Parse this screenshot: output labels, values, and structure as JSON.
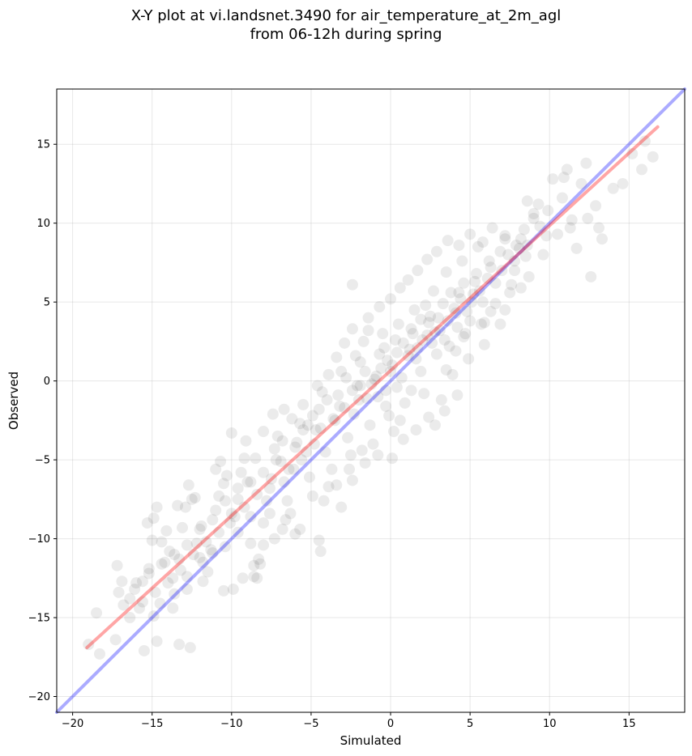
{
  "chart_data": {
    "type": "scatter",
    "title": "X-Y plot at vi.landsnet.3490 for air_temperature_at_2m_agl",
    "subtitle": "from 06-12h during spring",
    "xlabel": "Simulated",
    "ylabel": "Observed",
    "xlim": [
      -21,
      18.5
    ],
    "ylim": [
      -21,
      18.5
    ],
    "xticks": [
      -20,
      -15,
      -10,
      -5,
      0,
      5,
      10,
      15
    ],
    "yticks": [
      -20,
      -15,
      -10,
      -5,
      0,
      5,
      10,
      15
    ],
    "xtick_labels": [
      "−20",
      "−15",
      "−10",
      "−5",
      "0",
      "5",
      "10",
      "15"
    ],
    "ytick_labels": [
      "−20",
      "−15",
      "−10",
      "−5",
      "0",
      "5",
      "10",
      "15"
    ],
    "grid": true,
    "marker_color": "#000000",
    "marker_alpha": 0.08,
    "lines": [
      {
        "role": "one-to-one reference",
        "color": "#0000ff",
        "alpha": 0.33,
        "x": [
          -21,
          18.5
        ],
        "y": [
          -21,
          18.5
        ]
      },
      {
        "role": "linear fit",
        "color": "#ff0000",
        "alpha": 0.35,
        "x": [
          -19.1,
          16.8
        ],
        "y": [
          -16.9,
          16.1
        ]
      }
    ],
    "points": [
      [
        -18.3,
        -17.3
      ],
      [
        -19.0,
        -16.7
      ],
      [
        -18.5,
        -14.7
      ],
      [
        -17.3,
        -16.4
      ],
      [
        -17.1,
        -13.4
      ],
      [
        -16.9,
        -12.7
      ],
      [
        -17.2,
        -11.7
      ],
      [
        -16.4,
        -13.8
      ],
      [
        -16.1,
        -13.2
      ],
      [
        -15.8,
        -14.4
      ],
      [
        -15.6,
        -12.7
      ],
      [
        -15.2,
        -11.9
      ],
      [
        -15.3,
        -9.0
      ],
      [
        -14.9,
        -8.7
      ],
      [
        -14.7,
        -8.0
      ],
      [
        -14.4,
        -10.2
      ],
      [
        -14.2,
        -11.5
      ],
      [
        -13.9,
        -10.8
      ],
      [
        -13.7,
        -12.5
      ],
      [
        -13.3,
        -11.3
      ],
      [
        -13.1,
        -9.3
      ],
      [
        -12.9,
        -8.0
      ],
      [
        -12.7,
        -6.6
      ],
      [
        -12.5,
        -7.5
      ],
      [
        -12.2,
        -10.3
      ],
      [
        -11.9,
        -9.2
      ],
      [
        -11.8,
        -11.5
      ],
      [
        -11.5,
        -12.1
      ],
      [
        -11.3,
        -10.7
      ],
      [
        -11.0,
        -8.2
      ],
      [
        -10.8,
        -7.3
      ],
      [
        -10.5,
        -6.5
      ],
      [
        -10.3,
        -6.0
      ],
      [
        -10.1,
        -9.0
      ],
      [
        -9.8,
        -8.6
      ],
      [
        -9.6,
        -7.5
      ],
      [
        -9.4,
        -5.8
      ],
      [
        -9.2,
        -4.9
      ],
      [
        -9.0,
        -6.4
      ],
      [
        -8.8,
        -10.3
      ],
      [
        -8.6,
        -11.7
      ],
      [
        -8.4,
        -12.5
      ],
      [
        -8.2,
        -11.6
      ],
      [
        -8.0,
        -9.0
      ],
      [
        -7.8,
        -7.6
      ],
      [
        -7.5,
        -6.2
      ],
      [
        -7.3,
        -4.3
      ],
      [
        -7.1,
        -3.5
      ],
      [
        -6.9,
        -5.1
      ],
      [
        -6.7,
        -6.4
      ],
      [
        -6.5,
        -7.6
      ],
      [
        -6.3,
        -8.4
      ],
      [
        -6.1,
        -5.6
      ],
      [
        -5.9,
        -3.9
      ],
      [
        -5.7,
        -2.7
      ],
      [
        -5.5,
        -1.5
      ],
      [
        -5.3,
        -4.5
      ],
      [
        -5.1,
        -6.1
      ],
      [
        -4.9,
        -7.3
      ],
      [
        -4.7,
        -3.1
      ],
      [
        -4.5,
        -1.8
      ],
      [
        -4.3,
        -0.7
      ],
      [
        -4.1,
        -4.5
      ],
      [
        -3.9,
        -6.7
      ],
      [
        -3.7,
        -5.6
      ],
      [
        -3.5,
        -2.5
      ],
      [
        -3.3,
        -0.9
      ],
      [
        -3.1,
        0.6
      ],
      [
        -2.9,
        -1.7
      ],
      [
        -2.7,
        -3.6
      ],
      [
        -2.5,
        -4.7
      ],
      [
        -2.3,
        -2.1
      ],
      [
        -2.1,
        -0.3
      ],
      [
        -1.9,
        1.2
      ],
      [
        -1.7,
        2.5
      ],
      [
        -1.5,
        -1.1
      ],
      [
        -1.3,
        -2.8
      ],
      [
        -1.1,
        -4.0
      ],
      [
        -0.9,
        0.3
      ],
      [
        -0.7,
        1.7
      ],
      [
        -0.5,
        3.0
      ],
      [
        -0.3,
        -0.6
      ],
      [
        -0.1,
        -2.2
      ],
      [
        0.1,
        1.0
      ],
      [
        0.3,
        2.6
      ],
      [
        0.5,
        3.6
      ],
      [
        0.7,
        0.2
      ],
      [
        0.9,
        -1.4
      ],
      [
        1.1,
        1.6
      ],
      [
        1.3,
        3.3
      ],
      [
        1.5,
        4.5
      ],
      [
        1.7,
        2.1
      ],
      [
        1.9,
        0.6
      ],
      [
        2.1,
        -0.8
      ],
      [
        2.3,
        2.9
      ],
      [
        2.5,
        4.1
      ],
      [
        2.7,
        5.7
      ],
      [
        2.9,
        1.7
      ],
      [
        3.1,
        3.2
      ],
      [
        3.3,
        4.9
      ],
      [
        3.5,
        6.9
      ],
      [
        3.7,
        2.2
      ],
      [
        3.9,
        0.4
      ],
      [
        4.1,
        4.3
      ],
      [
        4.3,
        5.6
      ],
      [
        4.5,
        7.6
      ],
      [
        4.7,
        3.0
      ],
      [
        4.9,
        1.4
      ],
      [
        5.1,
        5.0
      ],
      [
        5.3,
        6.3
      ],
      [
        5.5,
        8.5
      ],
      [
        5.7,
        3.6
      ],
      [
        5.9,
        2.3
      ],
      [
        6.1,
        6.5
      ],
      [
        6.3,
        7.2
      ],
      [
        6.6,
        4.9
      ],
      [
        6.9,
        8.2
      ],
      [
        7.2,
        9.0
      ],
      [
        7.5,
        5.6
      ],
      [
        7.8,
        7.0
      ],
      [
        8.1,
        8.4
      ],
      [
        8.4,
        9.6
      ],
      [
        8.7,
        6.6
      ],
      [
        9.0,
        10.3
      ],
      [
        9.3,
        11.2
      ],
      [
        9.6,
        8.0
      ],
      [
        9.9,
        10.8
      ],
      [
        10.2,
        12.8
      ],
      [
        10.5,
        9.3
      ],
      [
        10.8,
        11.6
      ],
      [
        11.1,
        13.4
      ],
      [
        11.4,
        10.2
      ],
      [
        11.7,
        8.4
      ],
      [
        12.0,
        12.5
      ],
      [
        12.3,
        13.8
      ],
      [
        12.6,
        6.6
      ],
      [
        12.9,
        11.1
      ],
      [
        13.3,
        9.0
      ],
      [
        14.0,
        12.2
      ],
      [
        14.6,
        12.5
      ],
      [
        15.2,
        14.4
      ],
      [
        15.8,
        13.4
      ],
      [
        16.0,
        15.2
      ],
      [
        16.5,
        14.2
      ],
      [
        9.0,
        10.6
      ],
      [
        8.6,
        11.4
      ],
      [
        10.9,
        12.9
      ],
      [
        11.3,
        9.7
      ],
      [
        12.4,
        10.3
      ],
      [
        13.1,
        9.7
      ],
      [
        -2.4,
        6.1
      ],
      [
        -1.4,
        3.2
      ],
      [
        -2.2,
        1.6
      ],
      [
        -1.9,
        -0.3
      ],
      [
        -0.3,
        -1.6
      ],
      [
        0.2,
        -3.2
      ],
      [
        0.6,
        -2.5
      ],
      [
        1.3,
        -0.6
      ],
      [
        2.4,
        -2.3
      ],
      [
        3.2,
        -1.2
      ],
      [
        3.5,
        0.7
      ],
      [
        4.1,
        1.9
      ],
      [
        4.6,
        2.8
      ],
      [
        5.6,
        5.7
      ],
      [
        5.9,
        3.7
      ],
      [
        6.3,
        4.4
      ],
      [
        6.9,
        3.6
      ],
      [
        7.2,
        4.5
      ],
      [
        7.6,
        6.1
      ],
      [
        8.2,
        5.9
      ],
      [
        -4.5,
        -10.1
      ],
      [
        -4.4,
        -10.8
      ],
      [
        -5.7,
        -9.4
      ],
      [
        -6.6,
        -8.8
      ],
      [
        -7.6,
        -8.4
      ],
      [
        -8.8,
        -8.6
      ],
      [
        -9.6,
        -9.6
      ],
      [
        -10.4,
        -10.5
      ],
      [
        -11.2,
        -10.9
      ],
      [
        -12.0,
        -11.2
      ],
      [
        -12.8,
        -12.4
      ],
      [
        -13.6,
        -13.5
      ],
      [
        -14.5,
        -14.1
      ],
      [
        -14.9,
        -14.9
      ],
      [
        -15.5,
        -17.1
      ],
      [
        -14.7,
        -16.5
      ],
      [
        -13.3,
        -16.7
      ],
      [
        -12.6,
        -16.9
      ],
      [
        -13.7,
        -14.4
      ],
      [
        -12.8,
        -13.2
      ],
      [
        -11.8,
        -12.7
      ],
      [
        -10.5,
        -13.3
      ],
      [
        -9.9,
        -13.2
      ],
      [
        -9.3,
        -12.5
      ],
      [
        -8.6,
        -12.4
      ],
      [
        -8.3,
        -11.3
      ],
      [
        -8.0,
        -10.4
      ],
      [
        -7.3,
        -10.0
      ],
      [
        -6.8,
        -9.4
      ],
      [
        -6.0,
        -9.7
      ],
      [
        -15.0,
        -10.1
      ],
      [
        -14.1,
        -9.5
      ],
      [
        -13.4,
        -7.9
      ],
      [
        -12.3,
        -7.4
      ],
      [
        -11.0,
        -5.6
      ],
      [
        -10.7,
        -5.1
      ],
      [
        -10.0,
        -3.3
      ],
      [
        -9.1,
        -3.8
      ],
      [
        -8.5,
        -4.9
      ],
      [
        -8.0,
        -3.2
      ],
      [
        -7.4,
        -2.1
      ],
      [
        -6.7,
        -1.8
      ],
      [
        -6.2,
        -2.4
      ],
      [
        -5.5,
        -3.1
      ],
      [
        -4.9,
        -2.2
      ],
      [
        -4.6,
        -0.3
      ],
      [
        -3.9,
        0.4
      ],
      [
        -3.4,
        1.5
      ],
      [
        -2.9,
        2.4
      ],
      [
        -2.4,
        3.3
      ],
      [
        -1.4,
        4.0
      ],
      [
        -0.7,
        4.7
      ],
      [
        0.0,
        5.2
      ],
      [
        0.6,
        5.9
      ],
      [
        1.1,
        6.4
      ],
      [
        1.7,
        7.0
      ],
      [
        2.3,
        7.7
      ],
      [
        2.9,
        8.2
      ],
      [
        3.6,
        8.9
      ],
      [
        4.3,
        8.6
      ],
      [
        5.0,
        9.3
      ],
      [
        5.8,
        8.8
      ],
      [
        6.4,
        9.7
      ],
      [
        7.2,
        9.2
      ],
      [
        7.9,
        8.6
      ],
      [
        8.5,
        7.9
      ],
      [
        -1.8,
        -4.4
      ],
      [
        -2.6,
        -5.6
      ],
      [
        -3.4,
        -6.6
      ],
      [
        -4.2,
        -7.6
      ],
      [
        -3.1,
        -8.0
      ],
      [
        -2.4,
        -6.3
      ],
      [
        -1.6,
        -5.2
      ],
      [
        -0.8,
        -4.7
      ],
      [
        0.1,
        -4.9
      ],
      [
        0.8,
        -3.7
      ],
      [
        1.6,
        -3.1
      ],
      [
        2.8,
        -2.8
      ],
      [
        3.4,
        -1.9
      ],
      [
        4.2,
        -0.9
      ],
      [
        -1.0,
        0.1
      ],
      [
        -0.6,
        0.8
      ],
      [
        -0.2,
        1.3
      ],
      [
        0.4,
        1.8
      ],
      [
        0.8,
        2.4
      ],
      [
        1.2,
        2.0
      ],
      [
        1.6,
        1.4
      ],
      [
        2.0,
        2.6
      ],
      [
        2.4,
        3.7
      ],
      [
        2.8,
        3.1
      ],
      [
        3.0,
        4.0
      ],
      [
        3.6,
        3.8
      ],
      [
        4.0,
        4.6
      ],
      [
        4.4,
        5.2
      ],
      [
        4.8,
        4.4
      ],
      [
        5.2,
        5.5
      ],
      [
        -0.4,
        2.1
      ],
      [
        0.0,
        0.6
      ],
      [
        0.4,
        -0.4
      ],
      [
        -0.8,
        -1.0
      ],
      [
        -1.2,
        -0.2
      ],
      [
        -1.6,
        0.6
      ],
      [
        -2.0,
        -1.2
      ],
      [
        -2.4,
        -0.6
      ],
      [
        -2.8,
        0.2
      ],
      [
        -3.2,
        -1.6
      ],
      [
        -3.6,
        -2.4
      ],
      [
        -4.0,
        -1.2
      ],
      [
        -4.4,
        -3.0
      ],
      [
        -4.8,
        -4.0
      ],
      [
        -5.2,
        -2.8
      ],
      [
        -5.6,
        -5.0
      ],
      [
        -6.0,
        -4.2
      ],
      [
        -6.4,
        -5.6
      ],
      [
        -6.8,
        -3.8
      ],
      [
        -7.2,
        -5.0
      ],
      [
        -7.6,
        -6.8
      ],
      [
        -8.0,
        -5.8
      ],
      [
        -8.4,
        -7.2
      ],
      [
        -8.8,
        -6.4
      ],
      [
        -9.2,
        -8.0
      ],
      [
        -9.6,
        -6.8
      ],
      [
        -10.0,
        -8.4
      ],
      [
        -10.4,
        -7.6
      ],
      [
        -10.8,
        -9.6
      ],
      [
        -11.2,
        -8.8
      ],
      [
        -11.6,
        -10.2
      ],
      [
        -12.0,
        -9.4
      ],
      [
        -12.4,
        -11.0
      ],
      [
        -12.8,
        -10.4
      ],
      [
        -13.2,
        -12.0
      ],
      [
        -13.6,
        -11.0
      ],
      [
        -14.0,
        -12.8
      ],
      [
        -14.4,
        -11.6
      ],
      [
        -14.8,
        -13.4
      ],
      [
        -15.2,
        -12.2
      ],
      [
        -15.6,
        -14.0
      ],
      [
        -16.0,
        -12.8
      ],
      [
        -16.4,
        -15.0
      ],
      [
        -16.8,
        -14.2
      ],
      [
        1.4,
        3.0
      ],
      [
        1.9,
        3.9
      ],
      [
        2.2,
        4.8
      ],
      [
        2.6,
        2.4
      ],
      [
        3.4,
        2.6
      ],
      [
        3.8,
        5.6
      ],
      [
        4.2,
        3.4
      ],
      [
        4.6,
        6.2
      ],
      [
        5.0,
        3.8
      ],
      [
        5.4,
        6.8
      ],
      [
        5.8,
        5.0
      ],
      [
        6.2,
        7.6
      ],
      [
        6.6,
        6.2
      ],
      [
        7.0,
        7.0
      ],
      [
        7.4,
        8.0
      ],
      [
        7.8,
        7.6
      ],
      [
        8.2,
        9.0
      ],
      [
        8.6,
        8.6
      ],
      [
        9.4,
        9.8
      ],
      [
        9.8,
        9.2
      ]
    ]
  }
}
